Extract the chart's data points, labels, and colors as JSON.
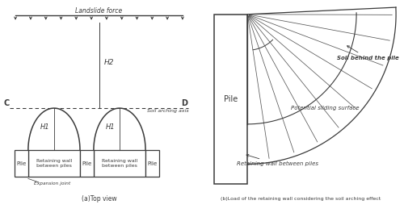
{
  "fig_width": 5.0,
  "fig_height": 2.69,
  "dpi": 100,
  "bg_color": "#ffffff",
  "line_color": "#3a3a3a",
  "title_a": "(a)Top view",
  "title_b": "(b)Load of the retaining wall considering the soil arching effect",
  "label_landslide": "Landslide force",
  "label_H2": "H2",
  "label_H1_1": "H1",
  "label_H1_2": "H1",
  "label_C": "C",
  "label_D": "D",
  "label_soil_arch": "Soil arching axis",
  "label_pile1": "Pile",
  "label_pile2": "Pile",
  "label_pile3": "Pile",
  "label_rw1": "Retaining wall\nbetween piles",
  "label_rw2": "Retaining wall\nbetween piles",
  "label_expansion": "Expansion joint",
  "label_pile_b": "Pile",
  "label_soil_behind": "Soil behind the pile",
  "label_potential": "Potential sliding surface",
  "label_retaining_b": "Retaining wall between piles"
}
